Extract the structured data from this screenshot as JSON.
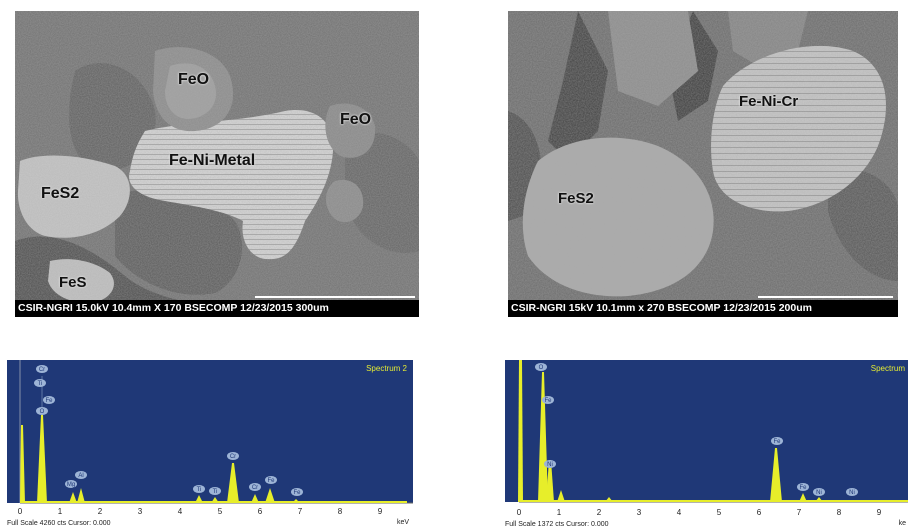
{
  "sem_left": {
    "caption": "CSIR-NGRI 15.0kV 10.4mm X 170 BSECOMP 12/23/2015  300um",
    "labels": [
      "FeO",
      "FeO",
      "Fe-Ni-Metal",
      "FeS2",
      "FeS"
    ]
  },
  "sem_right": {
    "caption": "CSIR-NGRI 15kV 10.1mm x 270 BSECOMP 12/23/2015 200um",
    "labels": [
      "Fe-Ni-Cr",
      "FeS2"
    ]
  },
  "spectrum_left": {
    "title": "Spectrum 2",
    "footer": "Full Scale 4260 cts Cursor: 0.000",
    "unit": "keV",
    "ticks": [
      "0",
      "1",
      "2",
      "3",
      "4",
      "5",
      "6",
      "7",
      "8",
      "9"
    ],
    "peak_labels": [
      "Cr",
      "Ti",
      "O",
      "Fe",
      "Mg",
      "Al",
      "Ti",
      "Ti",
      "Cr",
      "Cr",
      "Fe",
      "Fe"
    ]
  },
  "spectrum_right": {
    "title": "Spectrum",
    "footer": "Full Scale 1372 cts Cursor: 0.000",
    "unit": "ke",
    "ticks": [
      "0",
      "1",
      "2",
      "3",
      "4",
      "5",
      "6",
      "7",
      "8",
      "9"
    ],
    "peak_labels": [
      "O",
      "Fe",
      "Ni",
      "Fe",
      "Fe",
      "Ni",
      "Ni"
    ]
  },
  "colors": {
    "spectrum_bg": "#1f3877",
    "peak": "#e7ee2a",
    "title": "#e5ec33",
    "peak_badge": "#9db4d6"
  }
}
